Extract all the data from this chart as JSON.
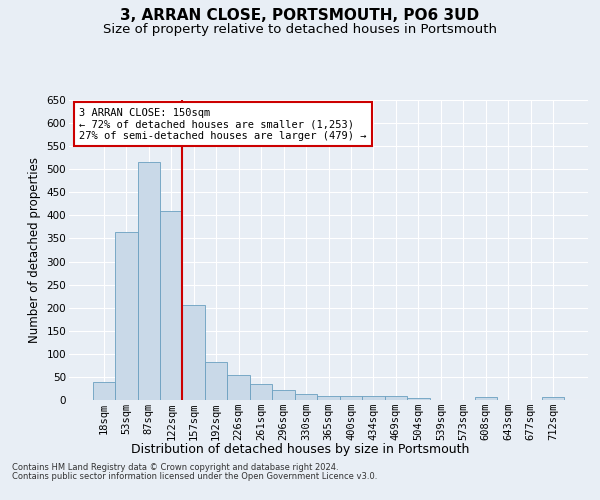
{
  "title": "3, ARRAN CLOSE, PORTSMOUTH, PO6 3UD",
  "subtitle": "Size of property relative to detached houses in Portsmouth",
  "xlabel": "Distribution of detached houses by size in Portsmouth",
  "ylabel": "Number of detached properties",
  "footnote1": "Contains HM Land Registry data © Crown copyright and database right 2024.",
  "footnote2": "Contains public sector information licensed under the Open Government Licence v3.0.",
  "bar_labels": [
    "18sqm",
    "53sqm",
    "87sqm",
    "122sqm",
    "157sqm",
    "192sqm",
    "226sqm",
    "261sqm",
    "296sqm",
    "330sqm",
    "365sqm",
    "400sqm",
    "434sqm",
    "469sqm",
    "504sqm",
    "539sqm",
    "573sqm",
    "608sqm",
    "643sqm",
    "677sqm",
    "712sqm"
  ],
  "bar_values": [
    38,
    365,
    515,
    410,
    205,
    82,
    55,
    35,
    22,
    12,
    8,
    8,
    8,
    8,
    5,
    0,
    0,
    6,
    0,
    0,
    6
  ],
  "bar_color": "#c9d9e8",
  "bar_edge_color": "#6a9fc0",
  "annotation_text": "3 ARRAN CLOSE: 150sqm\n← 72% of detached houses are smaller (1,253)\n27% of semi-detached houses are larger (479) →",
  "annotation_box_color": "#ffffff",
  "annotation_box_edge": "#cc0000",
  "vline_x": 3.5,
  "vline_color": "#cc0000",
  "ylim": [
    0,
    650
  ],
  "yticks": [
    0,
    50,
    100,
    150,
    200,
    250,
    300,
    350,
    400,
    450,
    500,
    550,
    600,
    650
  ],
  "background_color": "#e8eef5",
  "plot_bg_color": "#e8eef5",
  "grid_color": "#ffffff",
  "title_fontsize": 11,
  "subtitle_fontsize": 9.5,
  "tick_fontsize": 7.5,
  "ylabel_fontsize": 8.5,
  "xlabel_fontsize": 9
}
